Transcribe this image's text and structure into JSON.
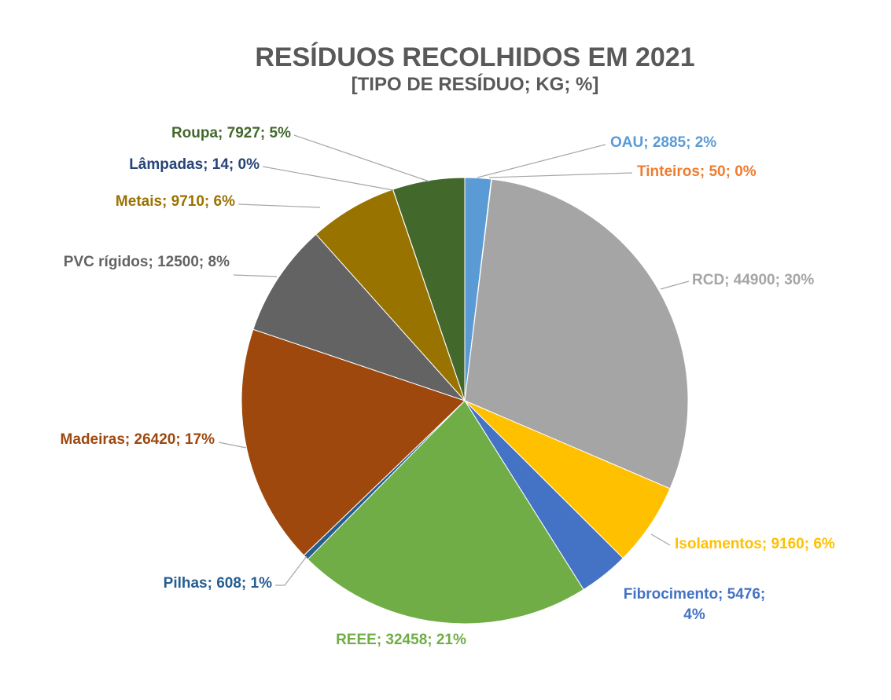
{
  "chart_data": {
    "type": "pie",
    "title": "RESÍDUOS RECOLHIDOS EM 2021",
    "subtitle": "[TIPO DE RESÍDUO; KG; %]",
    "slices": [
      {
        "name": "OAU",
        "value": 2885,
        "pct": "2%",
        "color": "#5b9bd5",
        "text_color": "#5b9bd5",
        "label": "OAU; 2885; 2%"
      },
      {
        "name": "Tinteiros",
        "value": 50,
        "pct": "0%",
        "color": "#ed7d31",
        "text_color": "#ed7d31",
        "label": "Tinteiros; 50; 0%"
      },
      {
        "name": "RCD",
        "value": 44900,
        "pct": "30%",
        "color": "#a5a5a5",
        "text_color": "#a5a5a5",
        "label": "RCD; 44900; 30%"
      },
      {
        "name": "Isolamentos",
        "value": 9160,
        "pct": "6%",
        "color": "#ffc000",
        "text_color": "#ffc000",
        "label": "Isolamentos; 9160; 6%"
      },
      {
        "name": "Fibrocimento",
        "value": 5476,
        "pct": "4%",
        "color": "#4472c4",
        "text_color": "#4472c4",
        "label_lines": [
          "Fibrocimento; 5476;",
          "4%"
        ]
      },
      {
        "name": "REEE",
        "value": 32458,
        "pct": "21%",
        "color": "#70ad47",
        "text_color": "#70ad47",
        "label": "REEE; 32458; 21%"
      },
      {
        "name": "Pilhas",
        "value": 608,
        "pct": "1%",
        "color": "#255e91",
        "text_color": "#255e91",
        "label": "Pilhas; 608; 1%"
      },
      {
        "name": "Madeiras",
        "value": 26420,
        "pct": "17%",
        "color": "#9e480e",
        "text_color": "#9e480e",
        "label": "Madeiras; 26420; 17%"
      },
      {
        "name": "PVC rígidos",
        "value": 12500,
        "pct": "8%",
        "color": "#636363",
        "text_color": "#636363",
        "label": "PVC rígidos; 12500; 8%"
      },
      {
        "name": "Metais",
        "value": 9710,
        "pct": "6%",
        "color": "#997300",
        "text_color": "#997300",
        "label": "Metais; 9710; 6%"
      },
      {
        "name": "Lâmpadas",
        "value": 14,
        "pct": "0%",
        "color": "#264478",
        "text_color": "#264478",
        "label": "Lâmpadas; 14; 0%"
      },
      {
        "name": "Roupa",
        "value": 7927,
        "pct": "5%",
        "color": "#43682b",
        "text_color": "#43682b",
        "label": "Roupa; 7927; 5%"
      }
    ],
    "start_angle_deg": 0,
    "direction": "clockwise",
    "legend": "none"
  }
}
